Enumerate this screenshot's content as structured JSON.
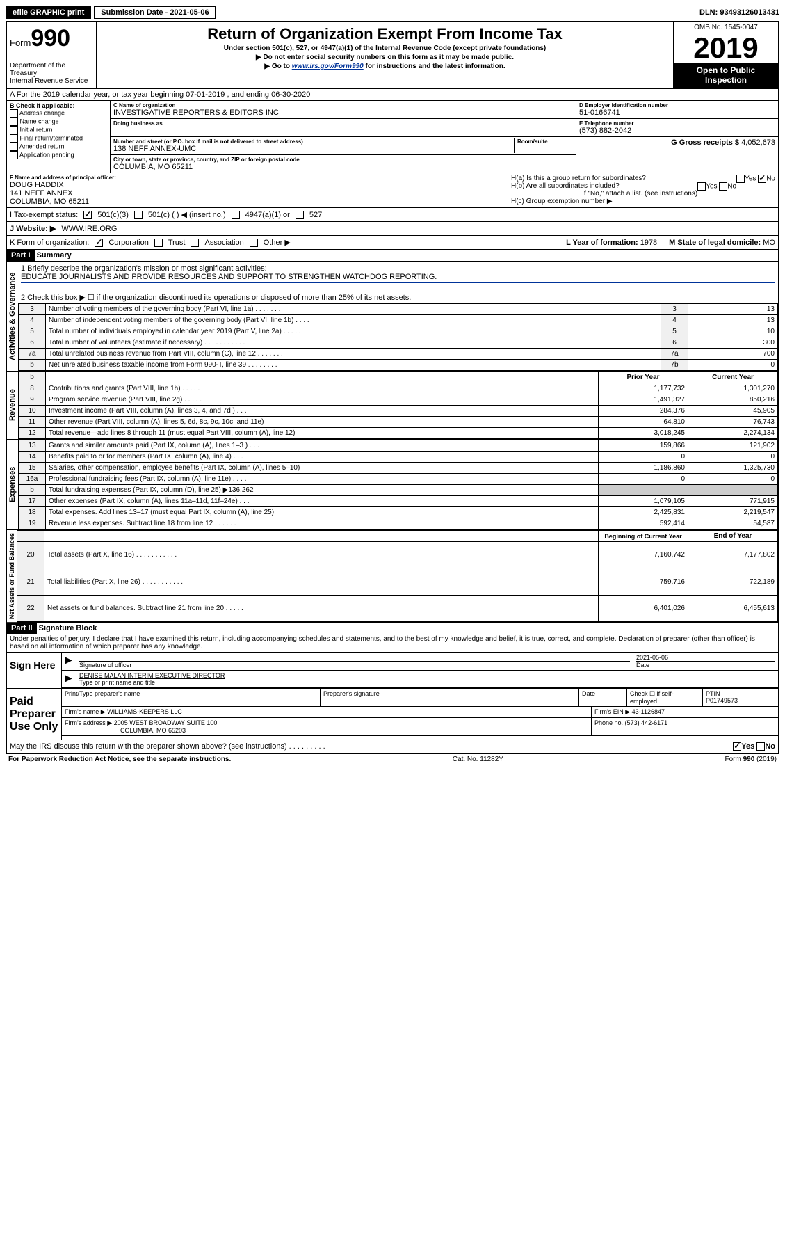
{
  "topbar": {
    "efile": "efile GRAPHIC print",
    "submission": "Submission Date - 2021-05-06",
    "dln": "DLN: 93493126013431"
  },
  "header": {
    "form_prefix": "Form",
    "form_number": "990",
    "dept": "Department of the Treasury",
    "irs": "Internal Revenue Service",
    "title": "Return of Organization Exempt From Income Tax",
    "subtitle": "Under section 501(c), 527, or 4947(a)(1) of the Internal Revenue Code (except private foundations)",
    "note1": "▶ Do not enter social security numbers on this form as it may be made public.",
    "note2_pre": "▶ Go to ",
    "note2_link": "www.irs.gov/Form990",
    "note2_post": " for instructions and the latest information.",
    "omb": "OMB No. 1545-0047",
    "year": "2019",
    "inspection1": "Open to Public",
    "inspection2": "Inspection"
  },
  "row_a": "A For the 2019 calendar year, or tax year beginning 07-01-2019    , and ending 06-30-2020",
  "col_b": {
    "header": "B Check if applicable:",
    "opts": [
      "Address change",
      "Name change",
      "Initial return",
      "Final return/terminated",
      "Amended return",
      "Application pending"
    ]
  },
  "col_c": {
    "name_label": "C Name of organization",
    "name": "INVESTIGATIVE REPORTERS & EDITORS INC",
    "dba_label": "Doing business as",
    "street_label": "Number and street (or P.O. box if mail is not delivered to street address)",
    "room_label": "Room/suite",
    "street": "138 NEFF ANNEX-UMC",
    "city_label": "City or town, state or province, country, and ZIP or foreign postal code",
    "city": "COLUMBIA, MO  65211"
  },
  "col_de": {
    "d_label": "D Employer identification number",
    "ein": "51-0166741",
    "e_label": "E Telephone number",
    "phone": "(573) 882-2042",
    "g_label": "G Gross receipts $",
    "g_val": "4,052,673"
  },
  "col_f": {
    "label": "F  Name and address of principal officer:",
    "name": "DOUG HADDIX",
    "addr1": "141 NEFF ANNEX",
    "addr2": "COLUMBIA, MO  65211"
  },
  "col_h": {
    "ha": "H(a)  Is this a group return for subordinates?",
    "hb": "H(b)  Are all subordinates included?",
    "hb_note": "If \"No,\" attach a list. (see instructions)",
    "hc": "H(c)  Group exemption number ▶",
    "yes": "Yes",
    "no": "No"
  },
  "tax_status": {
    "label": "I  Tax-exempt status:",
    "opt1": "501(c)(3)",
    "opt2": "501(c) (  ) ◀ (insert no.)",
    "opt3": "4947(a)(1) or",
    "opt4": "527"
  },
  "website": {
    "label": "J Website: ▶",
    "value": "WWW.IRE.ORG"
  },
  "row_k": {
    "label": "K Form of organization:",
    "opts": [
      "Corporation",
      "Trust",
      "Association",
      "Other ▶"
    ],
    "l_label": "L Year of formation:",
    "l_val": "1978",
    "m_label": "M State of legal domicile:",
    "m_val": "MO"
  },
  "part1": {
    "header": "Part I",
    "title": "Summary",
    "q1": "1  Briefly describe the organization's mission or most significant activities:",
    "q1_val": "EDUCATE JOURNALISTS AND PROVIDE RESOURCES AND SUPPORT TO STRENGTHEN WATCHDOG REPORTING.",
    "q2": "2   Check this box ▶ ☐  if the organization discontinued its operations or disposed of more than 25% of its net assets.",
    "sidebar1": "Activities & Governance",
    "sidebar2": "Revenue",
    "sidebar3": "Expenses",
    "sidebar4": "Net Assets or Fund Balances",
    "col_prior": "Prior Year",
    "col_current": "Current Year",
    "col_begin": "Beginning of Current Year",
    "col_end": "End of Year",
    "rows_a": [
      {
        "n": "3",
        "label": "Number of voting members of the governing body (Part VI, line 1a)  .   .   .   .   .   .   .",
        "box": "3",
        "val": "13"
      },
      {
        "n": "4",
        "label": "Number of independent voting members of the governing body (Part VI, line 1b)  .   .   .   .",
        "box": "4",
        "val": "13"
      },
      {
        "n": "5",
        "label": "Total number of individuals employed in calendar year 2019 (Part V, line 2a)   .   .   .   .   .",
        "box": "5",
        "val": "10"
      },
      {
        "n": "6",
        "label": "Total number of volunteers (estimate if necessary)   .   .   .   .   .   .   .   .   .   .   .",
        "box": "6",
        "val": "300"
      },
      {
        "n": "7a",
        "label": "Total unrelated business revenue from Part VIII, column (C), line 12   .   .   .   .   .   .   .",
        "box": "7a",
        "val": "700"
      },
      {
        "n": "b",
        "label": "Net unrelated business taxable income from Form 990-T, line 39  .   .   .   .   .   .   .   .",
        "box": "7b",
        "val": "0"
      }
    ],
    "rows_rev": [
      {
        "n": "8",
        "label": "Contributions and grants (Part VIII, line 1h)   .   .   .   .   .",
        "prior": "1,177,732",
        "curr": "1,301,270"
      },
      {
        "n": "9",
        "label": "Program service revenue (Part VIII, line 2g)   .   .   .   .   .",
        "prior": "1,491,327",
        "curr": "850,216"
      },
      {
        "n": "10",
        "label": "Investment income (Part VIII, column (A), lines 3, 4, and 7d )   .   .   .",
        "prior": "284,376",
        "curr": "45,905"
      },
      {
        "n": "11",
        "label": "Other revenue (Part VIII, column (A), lines 5, 6d, 8c, 9c, 10c, and 11e)",
        "prior": "64,810",
        "curr": "76,743"
      },
      {
        "n": "12",
        "label": "Total revenue—add lines 8 through 11 (must equal Part VIII, column (A), line 12)",
        "prior": "3,018,245",
        "curr": "2,274,134"
      }
    ],
    "rows_exp": [
      {
        "n": "13",
        "label": "Grants and similar amounts paid (Part IX, column (A), lines 1–3 )   .   .   .",
        "prior": "159,866",
        "curr": "121,902"
      },
      {
        "n": "14",
        "label": "Benefits paid to or for members (Part IX, column (A), line 4)   .   .   .",
        "prior": "0",
        "curr": "0"
      },
      {
        "n": "15",
        "label": "Salaries, other compensation, employee benefits (Part IX, column (A), lines 5–10)",
        "prior": "1,186,860",
        "curr": "1,325,730"
      },
      {
        "n": "16a",
        "label": "Professional fundraising fees (Part IX, column (A), line 11e)   .   .   .   .",
        "prior": "0",
        "curr": "0"
      },
      {
        "n": "b",
        "label": "Total fundraising expenses (Part IX, column (D), line 25) ▶136,262",
        "prior": "",
        "curr": ""
      },
      {
        "n": "17",
        "label": "Other expenses (Part IX, column (A), lines 11a–11d, 11f–24e)   .   .   .",
        "prior": "1,079,105",
        "curr": "771,915"
      },
      {
        "n": "18",
        "label": "Total expenses. Add lines 13–17 (must equal Part IX, column (A), line 25)",
        "prior": "2,425,831",
        "curr": "2,219,547"
      },
      {
        "n": "19",
        "label": "Revenue less expenses. Subtract line 18 from line 12  .   .   .   .   .   .",
        "prior": "592,414",
        "curr": "54,587"
      }
    ],
    "rows_net": [
      {
        "n": "20",
        "label": "Total assets (Part X, line 16)   .   .   .   .   .   .   .   .   .   .   .",
        "prior": "7,160,742",
        "curr": "7,177,802"
      },
      {
        "n": "21",
        "label": "Total liabilities (Part X, line 26)  .   .   .   .   .   .   .   .   .   .   .",
        "prior": "759,716",
        "curr": "722,189"
      },
      {
        "n": "22",
        "label": "Net assets or fund balances. Subtract line 21 from line 20   .   .   .   .   .",
        "prior": "6,401,026",
        "curr": "6,455,613"
      }
    ]
  },
  "part2": {
    "header": "Part II",
    "title": "Signature Block",
    "perjury": "Under penalties of perjury, I declare that I have examined this return, including accompanying schedules and statements, and to the best of my knowledge and belief, it is true, correct, and complete. Declaration of preparer (other than officer) is based on all information of which preparer has any knowledge.",
    "sign_here": "Sign Here",
    "sig_officer": "Signature of officer",
    "sig_date": "2021-05-06",
    "date_label": "Date",
    "officer_name": "DENISE MALAN  INTERIM EXECUTIVE DIRECTOR",
    "type_name": "Type or print name and title",
    "paid": "Paid Preparer Use Only",
    "prep_name_label": "Print/Type preparer's name",
    "prep_sig_label": "Preparer's signature",
    "check_self": "Check ☐ if self-employed",
    "ptin_label": "PTIN",
    "ptin": "P01749573",
    "firm_name_label": "Firm's name   ▶",
    "firm_name": "WILLIAMS-KEEPERS LLC",
    "firm_ein_label": "Firm's EIN ▶",
    "firm_ein": "43-1126847",
    "firm_addr_label": "Firm's address ▶",
    "firm_addr1": "2005 WEST BROADWAY SUITE 100",
    "firm_addr2": "COLUMBIA, MO  65203",
    "phone_label": "Phone no.",
    "phone": "(573) 442-6171",
    "discuss": "May the IRS discuss this return with the preparer shown above? (see instructions)   .   .   .   .   .   .   .   .   .",
    "yes": "Yes",
    "no": "No"
  },
  "footer": {
    "paperwork": "For Paperwork Reduction Act Notice, see the separate instructions.",
    "cat": "Cat. No. 11282Y",
    "form": "Form 990 (2019)"
  }
}
